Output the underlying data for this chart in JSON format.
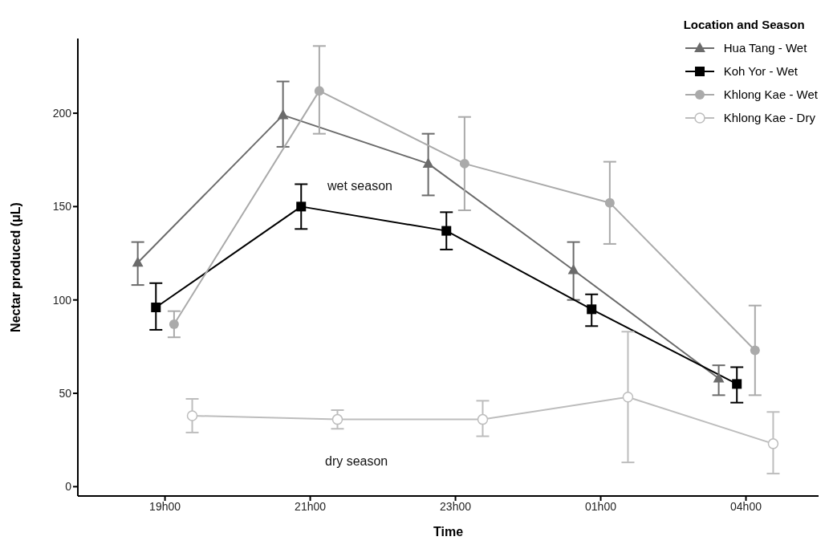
{
  "chart_data": {
    "type": "line",
    "xlabel": "Time",
    "ylabel": "Nectar produced (μL)",
    "legend_title": "Location and Season",
    "categories": [
      "19h00",
      "21h00",
      "23h00",
      "01h00",
      "04h00"
    ],
    "series": [
      {
        "name": "Hua Tang - Wet",
        "color": "#6b6b6b",
        "marker": "triangle",
        "values": [
          120,
          199,
          173,
          116,
          58
        ],
        "errors": [
          [
            108,
            131
          ],
          [
            182,
            217
          ],
          [
            156,
            189
          ],
          [
            100,
            131
          ],
          [
            49,
            65
          ]
        ]
      },
      {
        "name": "Koh Yor - Wet",
        "color": "#000000",
        "marker": "square",
        "values": [
          96,
          150,
          137,
          95,
          55
        ],
        "errors": [
          [
            84,
            109
          ],
          [
            138,
            162
          ],
          [
            127,
            147
          ],
          [
            86,
            103
          ],
          [
            45,
            64
          ]
        ]
      },
      {
        "name": "Khlong Kae - Wet",
        "color": "#aaaaaa",
        "marker": "circle",
        "values": [
          87,
          212,
          173,
          152,
          73
        ],
        "errors": [
          [
            80,
            94
          ],
          [
            189,
            236
          ],
          [
            148,
            198
          ],
          [
            130,
            174
          ],
          [
            49,
            97
          ]
        ]
      },
      {
        "name": "Khlong Kae - Dry",
        "color": "#bdbdbd",
        "marker": "circle",
        "values": [
          38,
          36,
          36,
          48,
          23
        ],
        "errors": [
          [
            29,
            47
          ],
          [
            31,
            41
          ],
          [
            27,
            46
          ],
          [
            13,
            83
          ],
          [
            7,
            40
          ]
        ]
      }
    ],
    "annotations": [
      "wet season",
      "dry season"
    ],
    "ylim": [
      -5,
      240
    ],
    "yticks": [
      0,
      50,
      100,
      150,
      200
    ],
    "grid": false,
    "legend": "top right",
    "line_style": "solid"
  }
}
